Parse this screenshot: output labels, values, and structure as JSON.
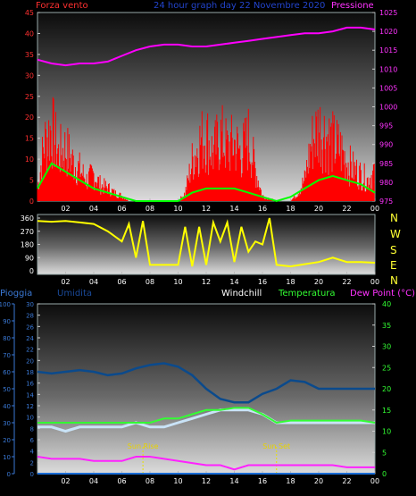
{
  "header": {
    "left_label": "Forza vento",
    "center_title": "24 hour graph day  22 Novembre 2020",
    "right_label": "Pressione"
  },
  "panel2": {
    "compass": [
      "N",
      "W",
      "S",
      "E",
      "N"
    ]
  },
  "panel3": {
    "labels": {
      "pioggia": "Pioggia",
      "umidita": "Umidita",
      "windchill": "Windchill",
      "temperatura": "Temperatura",
      "dewpoint": "Dew Point (°C)"
    },
    "annotations": {
      "sunrise": "Sun Rise",
      "sunset": "Sun Set"
    }
  },
  "colors": {
    "wind_speed": "#ff0000",
    "wind_avg": "#00ff00",
    "pressure": "#ff00ff",
    "direction": "#ffff00",
    "humidity": "#0b4a8c",
    "temperature": "#33ff33",
    "windchill": "#c9e3f7",
    "dewpoint": "#ff22ff",
    "rain": "#1a6cd6",
    "left_axis_red": "#ff3030",
    "pressure_axis": "#ff33ff",
    "axis_blue": "#3a78d4",
    "axis_green": "#33ff33"
  },
  "chart_data": [
    {
      "type": "line",
      "title": "24 hour graph day  22 Novembre 2020",
      "x_ticks": [
        "02",
        "04",
        "06",
        "08",
        "10",
        "12",
        "14",
        "16",
        "18",
        "20",
        "22",
        "00"
      ],
      "y_left": {
        "label": "Forza vento",
        "ticks": [
          0,
          5,
          10,
          15,
          20,
          25,
          30,
          35,
          40,
          45
        ],
        "range": [
          0,
          45
        ]
      },
      "y_right": {
        "label": "Pressione",
        "ticks": [
          975,
          980,
          985,
          990,
          995,
          1000,
          1005,
          1010,
          1015,
          1020,
          1025
        ],
        "range": [
          975,
          1025
        ]
      },
      "series": [
        {
          "name": "Forza vento",
          "axis": "left",
          "points": [
            [
              0,
              5
            ],
            [
              0.5,
              22
            ],
            [
              1,
              28
            ],
            [
              1.5,
              18
            ],
            [
              2,
              20
            ],
            [
              2.5,
              15
            ],
            [
              3,
              12
            ],
            [
              3.5,
              8
            ],
            [
              4,
              10
            ],
            [
              4.5,
              6
            ],
            [
              5,
              5
            ],
            [
              5.5,
              3
            ],
            [
              6,
              2
            ],
            [
              6.5,
              0
            ],
            [
              7,
              0
            ],
            [
              8,
              0
            ],
            [
              9,
              0
            ],
            [
              10,
              0
            ],
            [
              10.5,
              3
            ],
            [
              11,
              15
            ],
            [
              11.5,
              22
            ],
            [
              12,
              25
            ],
            [
              12.5,
              18
            ],
            [
              13,
              25
            ],
            [
              13.5,
              20
            ],
            [
              14,
              22
            ],
            [
              14.5,
              18
            ],
            [
              15,
              24
            ],
            [
              15.5,
              12
            ],
            [
              16,
              2
            ],
            [
              17,
              0
            ],
            [
              18,
              0
            ],
            [
              18.5,
              3
            ],
            [
              19,
              8
            ],
            [
              19.5,
              22
            ],
            [
              20,
              28
            ],
            [
              20.5,
              25
            ],
            [
              21,
              22
            ],
            [
              21.5,
              20
            ],
            [
              22,
              15
            ],
            [
              22.5,
              12
            ],
            [
              23,
              10
            ],
            [
              23.5,
              8
            ],
            [
              24,
              12
            ]
          ]
        },
        {
          "name": "Forza vento avg",
          "axis": "left",
          "points": [
            [
              0,
              3
            ],
            [
              1,
              9
            ],
            [
              2,
              7
            ],
            [
              3,
              5
            ],
            [
              4,
              3
            ],
            [
              5,
              2
            ],
            [
              6,
              1
            ],
            [
              7,
              0
            ],
            [
              8,
              0
            ],
            [
              9,
              0
            ],
            [
              10,
              0
            ],
            [
              11,
              2
            ],
            [
              12,
              3
            ],
            [
              13,
              3
            ],
            [
              14,
              3
            ],
            [
              15,
              2
            ],
            [
              16,
              1
            ],
            [
              17,
              0
            ],
            [
              18,
              1
            ],
            [
              19,
              3
            ],
            [
              20,
              5
            ],
            [
              21,
              6
            ],
            [
              22,
              5
            ],
            [
              23,
              4
            ],
            [
              24,
              2
            ]
          ]
        },
        {
          "name": "Pressione",
          "axis": "right",
          "points": [
            [
              0,
              1012.5
            ],
            [
              1,
              1011.5
            ],
            [
              2,
              1011
            ],
            [
              3,
              1011.5
            ],
            [
              4,
              1011.5
            ],
            [
              5,
              1012
            ],
            [
              6,
              1013.5
            ],
            [
              7,
              1015
            ],
            [
              8,
              1016
            ],
            [
              9,
              1016.5
            ],
            [
              10,
              1016.5
            ],
            [
              11,
              1016
            ],
            [
              12,
              1016
            ],
            [
              13,
              1016.5
            ],
            [
              14,
              1017
            ],
            [
              15,
              1017.5
            ],
            [
              16,
              1018
            ],
            [
              17,
              1018.5
            ],
            [
              18,
              1019
            ],
            [
              19,
              1019.5
            ],
            [
              20,
              1019.5
            ],
            [
              21,
              1020
            ],
            [
              22,
              1021
            ],
            [
              23,
              1021
            ],
            [
              24,
              1020.5
            ]
          ]
        }
      ]
    },
    {
      "type": "line",
      "x_ticks": [
        "02",
        "04",
        "06",
        "08",
        "10",
        "12",
        "14",
        "16",
        "18",
        "20",
        "22",
        "00"
      ],
      "y": {
        "ticks": [
          0,
          90,
          180,
          270,
          360
        ],
        "range": [
          0,
          360
        ]
      },
      "compass": [
        "N",
        "W",
        "S",
        "E",
        "N"
      ],
      "series": [
        {
          "name": "Direzione vento",
          "points": [
            [
              0,
              340
            ],
            [
              1,
              335
            ],
            [
              2,
              340
            ],
            [
              3,
              330
            ],
            [
              4,
              320
            ],
            [
              5,
              270
            ],
            [
              6,
              200
            ],
            [
              6.5,
              320
            ],
            [
              7,
              90
            ],
            [
              7.5,
              340
            ],
            [
              8,
              40
            ],
            [
              9,
              40
            ],
            [
              10,
              40
            ],
            [
              10.5,
              300
            ],
            [
              11,
              30
            ],
            [
              11.5,
              300
            ],
            [
              12,
              40
            ],
            [
              12.5,
              330
            ],
            [
              13,
              200
            ],
            [
              13.5,
              330
            ],
            [
              14,
              60
            ],
            [
              14.5,
              300
            ],
            [
              15,
              130
            ],
            [
              15.5,
              200
            ],
            [
              16,
              180
            ],
            [
              16.5,
              360
            ],
            [
              17,
              40
            ],
            [
              18,
              30
            ],
            [
              19,
              45
            ],
            [
              20,
              60
            ],
            [
              21,
              90
            ],
            [
              22,
              60
            ],
            [
              23,
              60
            ],
            [
              24,
              55
            ]
          ]
        }
      ]
    },
    {
      "type": "line",
      "x_ticks": [
        "02",
        "04",
        "06",
        "08",
        "10",
        "12",
        "14",
        "16",
        "18",
        "20",
        "22",
        "00"
      ],
      "y_left_outer": {
        "label": "Umidita",
        "ticks": [
          0,
          10,
          20,
          30,
          40,
          50,
          60,
          70,
          80,
          90,
          100
        ],
        "range": [
          0,
          100
        ]
      },
      "y_left_inner": {
        "label": "Pioggia",
        "ticks": [
          0,
          2,
          4,
          6,
          8,
          10,
          12,
          14,
          16,
          18,
          20,
          22,
          24,
          26,
          28,
          30
        ],
        "range": [
          0,
          30
        ]
      },
      "y_right": {
        "label": "Temperatura",
        "ticks": [
          0,
          5,
          10,
          15,
          20,
          25,
          30,
          35,
          40
        ],
        "range": [
          0,
          40
        ]
      },
      "annotations": [
        {
          "text": "Sun Rise",
          "x": 7.5
        },
        {
          "text": "Sun Set",
          "x": 17
        }
      ],
      "series": [
        {
          "name": "Umidita",
          "axis": "left_outer",
          "points": [
            [
              0,
              60
            ],
            [
              1,
              59
            ],
            [
              2,
              60
            ],
            [
              3,
              61
            ],
            [
              4,
              60
            ],
            [
              5,
              58
            ],
            [
              6,
              59
            ],
            [
              7,
              62
            ],
            [
              8,
              64
            ],
            [
              9,
              65
            ],
            [
              10,
              63
            ],
            [
              11,
              58
            ],
            [
              12,
              50
            ],
            [
              13,
              44
            ],
            [
              14,
              42
            ],
            [
              15,
              42
            ],
            [
              16,
              47
            ],
            [
              17,
              50
            ],
            [
              18,
              55
            ],
            [
              19,
              54
            ],
            [
              20,
              50
            ],
            [
              21,
              50
            ],
            [
              22,
              50
            ],
            [
              23,
              50
            ],
            [
              24,
              50
            ]
          ]
        },
        {
          "name": "Windchill",
          "axis": "right",
          "points": [
            [
              0,
              11
            ],
            [
              1,
              11
            ],
            [
              2,
              10
            ],
            [
              3,
              11
            ],
            [
              4,
              11
            ],
            [
              5,
              11
            ],
            [
              6,
              11
            ],
            [
              7,
              12
            ],
            [
              8,
              11
            ],
            [
              9,
              11
            ],
            [
              10,
              12
            ],
            [
              11,
              13
            ],
            [
              12,
              14
            ],
            [
              13,
              15
            ],
            [
              14,
              15
            ],
            [
              15,
              15
            ],
            [
              16,
              14
            ],
            [
              17,
              12
            ],
            [
              18,
              12
            ],
            [
              19,
              12
            ],
            [
              20,
              12
            ],
            [
              21,
              12
            ],
            [
              22,
              12
            ],
            [
              23,
              12
            ],
            [
              24,
              12
            ]
          ]
        },
        {
          "name": "Temperatura",
          "axis": "right",
          "points": [
            [
              0,
              12
            ],
            [
              1,
              12
            ],
            [
              2,
              12
            ],
            [
              3,
              12
            ],
            [
              4,
              12
            ],
            [
              5,
              12
            ],
            [
              6,
              12
            ],
            [
              7,
              12
            ],
            [
              8,
              12
            ],
            [
              9,
              13
            ],
            [
              10,
              13
            ],
            [
              11,
              14
            ],
            [
              12,
              15
            ],
            [
              13,
              15
            ],
            [
              14,
              15.5
            ],
            [
              15,
              15.5
            ],
            [
              16,
              14
            ],
            [
              17,
              12
            ],
            [
              18,
              12.5
            ],
            [
              19,
              12.5
            ],
            [
              20,
              12.5
            ],
            [
              21,
              12.5
            ],
            [
              22,
              12.5
            ],
            [
              23,
              12.5
            ],
            [
              24,
              12
            ]
          ]
        },
        {
          "name": "Dew Point (°C)",
          "axis": "right",
          "points": [
            [
              0,
              4
            ],
            [
              1,
              3.5
            ],
            [
              2,
              3.5
            ],
            [
              3,
              3.5
            ],
            [
              4,
              3
            ],
            [
              5,
              3
            ],
            [
              6,
              3
            ],
            [
              7,
              4
            ],
            [
              8,
              4
            ],
            [
              9,
              3.5
            ],
            [
              10,
              3
            ],
            [
              11,
              2.5
            ],
            [
              12,
              2
            ],
            [
              13,
              2
            ],
            [
              14,
              1
            ],
            [
              15,
              2
            ],
            [
              16,
              2
            ],
            [
              17,
              2
            ],
            [
              18,
              2
            ],
            [
              19,
              2
            ],
            [
              20,
              2
            ],
            [
              21,
              2
            ],
            [
              22,
              1.5
            ],
            [
              23,
              1.5
            ],
            [
              24,
              1.5
            ]
          ]
        },
        {
          "name": "Pioggia",
          "axis": "left_inner",
          "points": [
            [
              0,
              0
            ],
            [
              24,
              0
            ]
          ]
        }
      ]
    }
  ]
}
